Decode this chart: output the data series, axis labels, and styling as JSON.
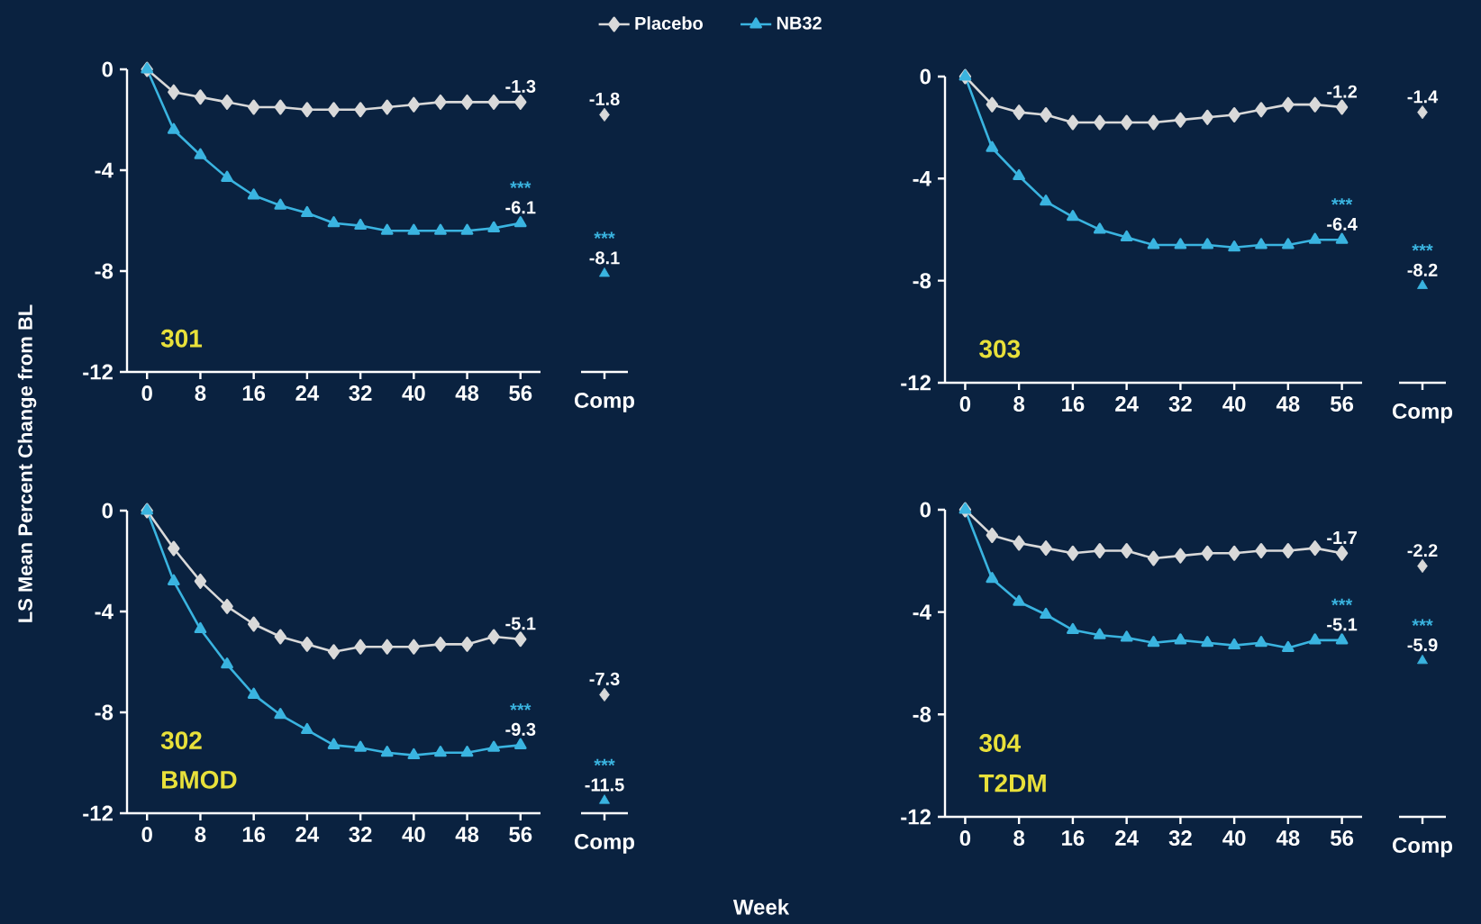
{
  "chart_data": [
    {
      "type": "line",
      "x": [
        0,
        4,
        8,
        12,
        16,
        20,
        24,
        28,
        32,
        36,
        40,
        44,
        48,
        52,
        56
      ],
      "xlim": [
        -3,
        59
      ],
      "xticks": [
        0,
        8,
        16,
        24,
        32,
        40,
        48,
        56
      ],
      "ylim": [
        -12,
        0
      ],
      "yticks": [
        -12,
        -8,
        -4,
        0
      ],
      "legend": "top",
      "ylabel": "LS Mean Percent Change from BL",
      "annotations": [
        "301",
        {
          "text": "***",
          "y": -6.1
        }
      ],
      "series": [
        {
          "name": "Placebo",
          "color": "#d9d9d9",
          "marker": "diamond",
          "values": [
            0,
            -0.9,
            -1.1,
            -1.3,
            -1.5,
            -1.5,
            -1.6,
            -1.6,
            -1.6,
            -1.5,
            -1.4,
            -1.3,
            -1.3,
            -1.3,
            -1.3
          ],
          "value_labels": [
            null,
            null,
            null,
            null,
            null,
            null,
            null,
            null,
            null,
            null,
            null,
            null,
            null,
            null,
            "-1.3"
          ]
        },
        {
          "name": "NB32",
          "color": "#3ab4e0",
          "marker": "triangle",
          "values": [
            0,
            -2.4,
            -3.4,
            -4.3,
            -5.0,
            -5.4,
            -5.7,
            -6.1,
            -6.2,
            -6.4,
            -6.4,
            -6.4,
            -6.4,
            -6.3,
            -6.1
          ],
          "value_labels": [
            null,
            null,
            null,
            null,
            null,
            null,
            null,
            null,
            null,
            null,
            null,
            null,
            null,
            null,
            "-6.1"
          ]
        }
      ]
    },
    {
      "type": "scatter",
      "categories": [
        "Comp"
      ],
      "ylim": [
        -12,
        0
      ],
      "tick_labels": "x",
      "annotations": [
        {
          "text": "***",
          "y": -8.1
        }
      ],
      "series": [
        {
          "color": "#d9d9d9",
          "marker": "diamond",
          "values": [
            -1.8
          ],
          "value_labels": [
            "-1.8"
          ]
        },
        {
          "color": "#3ab4e0",
          "marker": "triangle",
          "values": [
            -8.1
          ],
          "value_labels": [
            "-8.1"
          ]
        }
      ]
    },
    {
      "type": "line",
      "x": [
        0,
        4,
        8,
        12,
        16,
        20,
        24,
        28,
        32,
        36,
        40,
        44,
        48,
        52,
        56
      ],
      "xlim": [
        -3,
        59
      ],
      "xticks": [
        0,
        8,
        16,
        24,
        32,
        40,
        48,
        56
      ],
      "ylim": [
        -12,
        0
      ],
      "yticks": [
        -12,
        -8,
        -4,
        0
      ],
      "annotations": [
        "303",
        {
          "text": "***",
          "y": -6.4
        }
      ],
      "series": [
        {
          "color": "#d9d9d9",
          "marker": "diamond",
          "values": [
            0,
            -1.1,
            -1.4,
            -1.5,
            -1.8,
            -1.8,
            -1.8,
            -1.8,
            -1.7,
            -1.6,
            -1.5,
            -1.3,
            -1.1,
            -1.1,
            -1.2
          ],
          "value_labels": [
            null,
            null,
            null,
            null,
            null,
            null,
            null,
            null,
            null,
            null,
            null,
            null,
            null,
            null,
            "-1.2"
          ]
        },
        {
          "color": "#3ab4e0",
          "marker": "triangle",
          "values": [
            0,
            -2.8,
            -3.9,
            -4.9,
            -5.5,
            -6.0,
            -6.3,
            -6.6,
            -6.6,
            -6.6,
            -6.7,
            -6.6,
            -6.6,
            -6.4,
            -6.4
          ],
          "value_labels": [
            null,
            null,
            null,
            null,
            null,
            null,
            null,
            null,
            null,
            null,
            null,
            null,
            null,
            null,
            "-6.4"
          ]
        }
      ]
    },
    {
      "type": "scatter",
      "categories": [
        "Comp"
      ],
      "ylim": [
        -12,
        0
      ],
      "tick_labels": "x",
      "annotations": [
        {
          "text": "***",
          "y": -8.2
        }
      ],
      "series": [
        {
          "color": "#d9d9d9",
          "marker": "diamond",
          "values": [
            -1.4
          ],
          "value_labels": [
            "-1.4"
          ]
        },
        {
          "color": "#3ab4e0",
          "marker": "triangle",
          "values": [
            -8.2
          ],
          "value_labels": [
            "-8.2"
          ]
        }
      ]
    },
    {
      "type": "line",
      "x": [
        0,
        4,
        8,
        12,
        16,
        20,
        24,
        28,
        32,
        36,
        40,
        44,
        48,
        52,
        56
      ],
      "xlim": [
        -3,
        59
      ],
      "xticks": [
        0,
        8,
        16,
        24,
        32,
        40,
        48,
        56
      ],
      "ylim": [
        -12,
        0
      ],
      "yticks": [
        -12,
        -8,
        -4,
        0
      ],
      "annotations": [
        "302",
        "BMOD",
        {
          "text": "***",
          "y": -9.3
        }
      ],
      "series": [
        {
          "color": "#d9d9d9",
          "marker": "diamond",
          "values": [
            0,
            -1.5,
            -2.8,
            -3.8,
            -4.5,
            -5.0,
            -5.3,
            -5.6,
            -5.4,
            -5.4,
            -5.4,
            -5.3,
            -5.3,
            -5.0,
            -5.1
          ],
          "value_labels": [
            null,
            null,
            null,
            null,
            null,
            null,
            null,
            null,
            null,
            null,
            null,
            null,
            null,
            null,
            "-5.1"
          ]
        },
        {
          "color": "#3ab4e0",
          "marker": "triangle",
          "values": [
            0,
            -2.8,
            -4.7,
            -6.1,
            -7.3,
            -8.1,
            -8.7,
            -9.3,
            -9.4,
            -9.6,
            -9.7,
            -9.6,
            -9.6,
            -9.4,
            -9.3
          ],
          "value_labels": [
            null,
            null,
            null,
            null,
            null,
            null,
            null,
            null,
            null,
            null,
            null,
            null,
            null,
            null,
            "-9.3"
          ]
        }
      ]
    },
    {
      "type": "scatter",
      "categories": [
        "Comp"
      ],
      "ylim": [
        -12,
        0
      ],
      "tick_labels": "x",
      "xlabel": "Week",
      "annotations": [
        {
          "text": "***",
          "y": -11.5
        }
      ],
      "series": [
        {
          "color": "#d9d9d9",
          "marker": "diamond",
          "values": [
            -7.3
          ],
          "value_labels": [
            "-7.3"
          ]
        },
        {
          "color": "#3ab4e0",
          "marker": "triangle",
          "values": [
            -11.5
          ],
          "value_labels": [
            "-11.5"
          ]
        }
      ]
    },
    {
      "type": "line",
      "x": [
        0,
        4,
        8,
        12,
        16,
        20,
        24,
        28,
        32,
        36,
        40,
        44,
        48,
        52,
        56
      ],
      "xlim": [
        -3,
        59
      ],
      "xticks": [
        0,
        8,
        16,
        24,
        32,
        40,
        48,
        56
      ],
      "ylim": [
        -12,
        0
      ],
      "yticks": [
        -12,
        -8,
        -4,
        0
      ],
      "annotations": [
        "304",
        "T2DM",
        {
          "text": "***",
          "y": -5.1
        }
      ],
      "series": [
        {
          "color": "#d9d9d9",
          "marker": "diamond",
          "values": [
            0,
            -1.0,
            -1.3,
            -1.5,
            -1.7,
            -1.6,
            -1.6,
            -1.9,
            -1.8,
            -1.7,
            -1.7,
            -1.6,
            -1.6,
            -1.5,
            -1.7
          ],
          "value_labels": [
            null,
            null,
            null,
            null,
            null,
            null,
            null,
            null,
            null,
            null,
            null,
            null,
            null,
            null,
            "-1.7"
          ]
        },
        {
          "color": "#3ab4e0",
          "marker": "triangle",
          "values": [
            0,
            -2.7,
            -3.6,
            -4.1,
            -4.7,
            -4.9,
            -5.0,
            -5.2,
            -5.1,
            -5.2,
            -5.3,
            -5.2,
            -5.4,
            -5.1,
            -5.1
          ],
          "value_labels": [
            null,
            null,
            null,
            null,
            null,
            null,
            null,
            null,
            null,
            null,
            null,
            null,
            null,
            null,
            "-5.1"
          ]
        }
      ]
    },
    {
      "type": "scatter",
      "categories": [
        "Comp"
      ],
      "ylim": [
        -12,
        0
      ],
      "tick_labels": "x",
      "annotations": [
        {
          "text": "***",
          "y": -5.9
        }
      ],
      "series": [
        {
          "color": "#d9d9d9",
          "marker": "diamond",
          "values": [
            -2.2
          ],
          "value_labels": [
            "-2.2"
          ]
        },
        {
          "color": "#3ab4e0",
          "marker": "triangle",
          "values": [
            -5.9
          ],
          "value_labels": [
            "-5.9"
          ]
        }
      ]
    }
  ]
}
